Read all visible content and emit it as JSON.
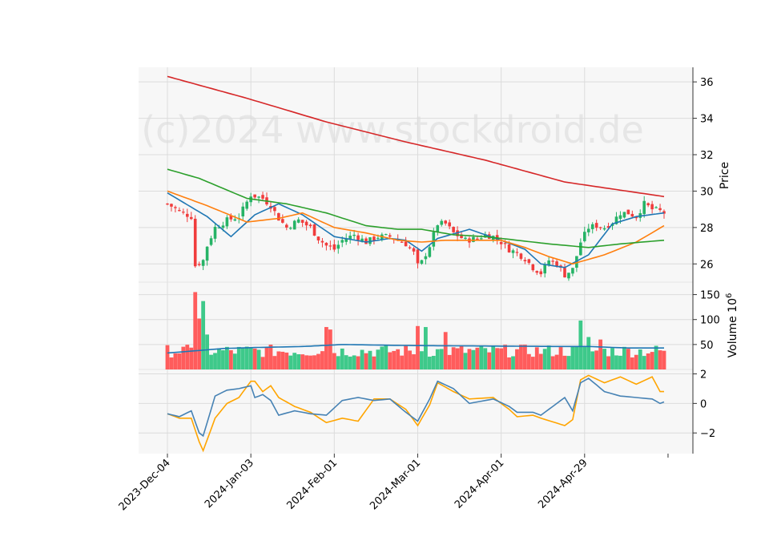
{
  "watermark": "(c)2024 www.stockdroid.de",
  "chart_data": {
    "type": "candlestick",
    "x_tick_labels": [
      "2023-Dec-04",
      "2024-Jan-03",
      "2024-Feb-01",
      "2024-Mar-01",
      "2024-Apr-01",
      "2024-Apr-29"
    ],
    "x_tick_index": [
      0,
      21,
      42,
      63,
      84,
      105
    ],
    "bar_count": 126,
    "price_panel": {
      "ylabel": "Price",
      "ylim": [
        25.0,
        36.8
      ],
      "yticks": [
        26,
        28,
        30,
        32,
        34,
        36
      ],
      "grid": true,
      "up_color": "#26b366",
      "down_color": "#f03c3c",
      "ma_lines": [
        {
          "color": "#1f77b4",
          "anchors": [
            [
              0,
              29.9
            ],
            [
              10,
              28.6
            ],
            [
              16,
              27.5
            ],
            [
              22,
              28.7
            ],
            [
              28,
              29.3
            ],
            [
              34,
              28.7
            ],
            [
              42,
              27.5
            ],
            [
              50,
              27.2
            ],
            [
              56,
              27.4
            ],
            [
              60,
              27.3
            ],
            [
              64,
              26.7
            ],
            [
              68,
              27.4
            ],
            [
              76,
              27.9
            ],
            [
              84,
              27.3
            ],
            [
              90,
              26.8
            ],
            [
              94,
              26.0
            ],
            [
              100,
              25.8
            ],
            [
              106,
              26.5
            ],
            [
              112,
              28.2
            ],
            [
              118,
              28.6
            ],
            [
              125,
              28.8
            ]
          ]
        },
        {
          "color": "#ff7f0e",
          "anchors": [
            [
              0,
              30.0
            ],
            [
              10,
              29.2
            ],
            [
              20,
              28.3
            ],
            [
              28,
              28.5
            ],
            [
              34,
              28.8
            ],
            [
              42,
              28.0
            ],
            [
              50,
              27.7
            ],
            [
              58,
              27.3
            ],
            [
              64,
              27.2
            ],
            [
              70,
              27.3
            ],
            [
              78,
              27.3
            ],
            [
              84,
              27.3
            ],
            [
              90,
              26.9
            ],
            [
              96,
              26.4
            ],
            [
              102,
              26.0
            ],
            [
              110,
              26.5
            ],
            [
              118,
              27.2
            ],
            [
              125,
              28.1
            ]
          ]
        },
        {
          "color": "#2ca02c",
          "anchors": [
            [
              0,
              31.2
            ],
            [
              8,
              30.7
            ],
            [
              20,
              29.6
            ],
            [
              30,
              29.3
            ],
            [
              40,
              28.8
            ],
            [
              50,
              28.1
            ],
            [
              58,
              27.9
            ],
            [
              64,
              27.9
            ],
            [
              72,
              27.6
            ],
            [
              80,
              27.5
            ],
            [
              88,
              27.3
            ],
            [
              96,
              27.1
            ],
            [
              106,
              26.9
            ],
            [
              114,
              27.1
            ],
            [
              125,
              27.3
            ]
          ]
        },
        {
          "color": "#d62728",
          "anchors": [
            [
              0,
              36.3
            ],
            [
              20,
              35.1
            ],
            [
              40,
              33.8
            ],
            [
              60,
              32.7
            ],
            [
              80,
              31.7
            ],
            [
              100,
              30.5
            ],
            [
              125,
              29.7
            ]
          ]
        }
      ]
    },
    "volume_panel": {
      "ylabel": "Volume  10",
      "ylabel_sup": "6",
      "ylim": [
        0,
        175
      ],
      "yticks": [
        50,
        100,
        150
      ],
      "ma_color": "#1f77b4",
      "ma_anchors": [
        [
          0,
          33
        ],
        [
          8,
          38
        ],
        [
          14,
          42
        ],
        [
          22,
          44
        ],
        [
          34,
          46
        ],
        [
          44,
          50
        ],
        [
          60,
          48
        ],
        [
          80,
          47
        ],
        [
          100,
          46
        ],
        [
          106,
          46
        ],
        [
          116,
          43
        ],
        [
          125,
          43
        ]
      ],
      "spikes": [
        [
          7,
          155
        ],
        [
          8,
          102
        ],
        [
          9,
          137
        ],
        [
          10,
          70
        ],
        [
          40,
          85
        ],
        [
          41,
          80
        ],
        [
          63,
          87
        ],
        [
          65,
          85
        ],
        [
          70,
          75
        ],
        [
          104,
          98
        ],
        [
          106,
          65
        ],
        [
          109,
          60
        ]
      ]
    },
    "indicator_panel": {
      "ylim": [
        -3.4,
        2.3
      ],
      "yticks": [
        -2,
        0,
        2
      ],
      "lines": [
        {
          "color": "#ffa500",
          "anchors": [
            [
              0,
              -0.7
            ],
            [
              3,
              -1.0
            ],
            [
              6,
              -1.0
            ],
            [
              8,
              -2.6
            ],
            [
              9,
              -3.2
            ],
            [
              12,
              -1.0
            ],
            [
              15,
              0.0
            ],
            [
              18,
              0.4
            ],
            [
              21,
              1.5
            ],
            [
              22,
              1.5
            ],
            [
              24,
              0.8
            ],
            [
              26,
              1.2
            ],
            [
              28,
              0.4
            ],
            [
              32,
              -0.2
            ],
            [
              36,
              -0.6
            ],
            [
              40,
              -1.3
            ],
            [
              44,
              -1.0
            ],
            [
              48,
              -1.2
            ],
            [
              52,
              0.3
            ],
            [
              56,
              0.3
            ],
            [
              60,
              -0.4
            ],
            [
              63,
              -1.5
            ],
            [
              66,
              -0.1
            ],
            [
              68,
              1.4
            ],
            [
              72,
              0.8
            ],
            [
              76,
              0.3
            ],
            [
              82,
              0.4
            ],
            [
              86,
              -0.4
            ],
            [
              88,
              -0.9
            ],
            [
              92,
              -0.8
            ],
            [
              94,
              -1.0
            ],
            [
              100,
              -1.5
            ],
            [
              102,
              -1.1
            ],
            [
              104,
              1.6
            ],
            [
              106,
              1.9
            ],
            [
              110,
              1.4
            ],
            [
              114,
              1.8
            ],
            [
              118,
              1.3
            ],
            [
              122,
              1.8
            ],
            [
              124,
              0.8
            ],
            [
              125,
              0.8
            ]
          ]
        },
        {
          "color": "#4682b4",
          "anchors": [
            [
              0,
              -0.7
            ],
            [
              3,
              -0.9
            ],
            [
              6,
              -0.5
            ],
            [
              8,
              -2.0
            ],
            [
              9,
              -2.2
            ],
            [
              12,
              0.5
            ],
            [
              15,
              0.9
            ],
            [
              18,
              1.0
            ],
            [
              21,
              1.2
            ],
            [
              22,
              0.4
            ],
            [
              24,
              0.6
            ],
            [
              26,
              0.2
            ],
            [
              28,
              -0.8
            ],
            [
              32,
              -0.5
            ],
            [
              36,
              -0.7
            ],
            [
              40,
              -0.8
            ],
            [
              44,
              0.2
            ],
            [
              48,
              0.4
            ],
            [
              52,
              0.2
            ],
            [
              56,
              0.3
            ],
            [
              60,
              -0.6
            ],
            [
              63,
              -1.2
            ],
            [
              66,
              0.3
            ],
            [
              68,
              1.5
            ],
            [
              72,
              1.0
            ],
            [
              76,
              0.0
            ],
            [
              82,
              0.3
            ],
            [
              86,
              -0.2
            ],
            [
              88,
              -0.6
            ],
            [
              92,
              -0.6
            ],
            [
              94,
              -0.8
            ],
            [
              100,
              0.4
            ],
            [
              102,
              -0.5
            ],
            [
              104,
              1.4
            ],
            [
              106,
              1.7
            ],
            [
              110,
              0.8
            ],
            [
              114,
              0.5
            ],
            [
              118,
              0.4
            ],
            [
              122,
              0.3
            ],
            [
              124,
              0.0
            ],
            [
              125,
              0.1
            ]
          ]
        }
      ]
    },
    "price_anchors": [
      [
        0,
        29.3
      ],
      [
        3,
        28.9
      ],
      [
        6,
        28.6
      ],
      [
        7,
        25.9
      ],
      [
        9,
        26.2
      ],
      [
        10,
        27.0
      ],
      [
        12,
        28.0
      ],
      [
        15,
        28.4
      ],
      [
        18,
        28.6
      ],
      [
        21,
        29.8
      ],
      [
        24,
        29.6
      ],
      [
        26,
        29.2
      ],
      [
        28,
        28.5
      ],
      [
        30,
        28.0
      ],
      [
        33,
        28.4
      ],
      [
        36,
        28.0
      ],
      [
        38,
        27.4
      ],
      [
        40,
        27.0
      ],
      [
        42,
        26.8
      ],
      [
        44,
        27.3
      ],
      [
        47,
        27.6
      ],
      [
        50,
        27.2
      ],
      [
        53,
        27.5
      ],
      [
        56,
        27.5
      ],
      [
        58,
        27.3
      ],
      [
        60,
        27.1
      ],
      [
        62,
        26.6
      ],
      [
        63,
        25.9
      ],
      [
        64,
        26.1
      ],
      [
        66,
        27.0
      ],
      [
        68,
        28.2
      ],
      [
        70,
        28.2
      ],
      [
        72,
        27.7
      ],
      [
        75,
        27.3
      ],
      [
        78,
        27.4
      ],
      [
        80,
        27.6
      ],
      [
        82,
        27.5
      ],
      [
        84,
        27.2
      ],
      [
        86,
        26.8
      ],
      [
        88,
        26.6
      ],
      [
        90,
        26.3
      ],
      [
        92,
        25.8
      ],
      [
        94,
        25.5
      ],
      [
        96,
        26.2
      ],
      [
        98,
        26.0
      ],
      [
        100,
        25.4
      ],
      [
        102,
        25.7
      ],
      [
        104,
        27.2
      ],
      [
        106,
        28.0
      ],
      [
        108,
        28.1
      ],
      [
        110,
        28.0
      ],
      [
        112,
        28.3
      ],
      [
        114,
        28.8
      ],
      [
        116,
        28.8
      ],
      [
        118,
        28.6
      ],
      [
        120,
        29.3
      ],
      [
        122,
        29.0
      ],
      [
        124,
        28.9
      ],
      [
        125,
        28.8
      ]
    ]
  }
}
